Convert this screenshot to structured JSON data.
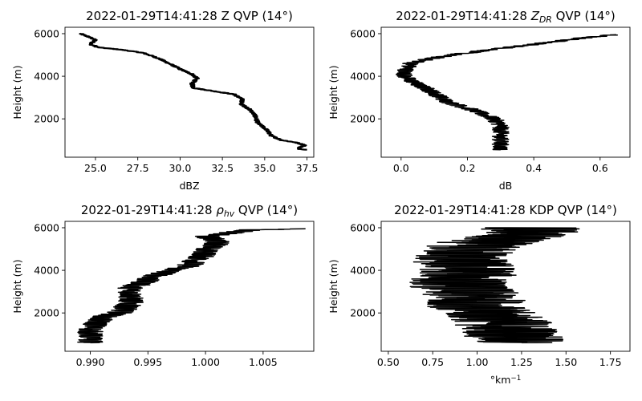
{
  "chart_data": [
    {
      "type": "line",
      "title": "2022-01-29T14:41:28 Z QVP (14°)",
      "title_parts": [
        {
          "t": "2022-01-29T14:41:28 Z QVP (14°)",
          "style": "normal"
        }
      ],
      "xlabel": "dBZ",
      "xlabel_parts": [
        {
          "t": "dBZ",
          "style": "normal"
        }
      ],
      "ylabel": "Height (m)",
      "xlim": [
        23.2,
        37.9
      ],
      "ylim": [
        200,
        6300
      ],
      "xticks": [
        25.0,
        27.5,
        30.0,
        32.5,
        35.0,
        37.5
      ],
      "xtick_labels": [
        "25.0",
        "27.5",
        "30.0",
        "32.5",
        "35.0",
        "37.5"
      ],
      "yticks": [
        2000,
        4000,
        6000
      ],
      "ytick_labels": [
        "2000",
        "4000",
        "6000"
      ],
      "color": "#000000",
      "linewidth": 2.2,
      "jitter": 0.12,
      "points": [
        [
          24.1,
          6000
        ],
        [
          24.6,
          5850
        ],
        [
          25.0,
          5700
        ],
        [
          24.7,
          5500
        ],
        [
          25.2,
          5350
        ],
        [
          26.5,
          5250
        ],
        [
          27.8,
          5100
        ],
        [
          28.7,
          4850
        ],
        [
          29.6,
          4500
        ],
        [
          30.1,
          4300
        ],
        [
          30.7,
          4100
        ],
        [
          31.0,
          3900
        ],
        [
          30.7,
          3650
        ],
        [
          30.8,
          3450
        ],
        [
          32.0,
          3300
        ],
        [
          33.2,
          3150
        ],
        [
          33.7,
          2900
        ],
        [
          33.6,
          2700
        ],
        [
          34.1,
          2450
        ],
        [
          34.4,
          2200
        ],
        [
          34.6,
          1800
        ],
        [
          35.1,
          1500
        ],
        [
          35.4,
          1200
        ],
        [
          36.0,
          1000
        ],
        [
          36.8,
          900
        ],
        [
          37.4,
          760
        ],
        [
          36.9,
          600
        ],
        [
          37.5,
          550
        ]
      ]
    },
    {
      "type": "line",
      "title": "2022-01-29T14:41:28 Z_DR QVP (14°)",
      "title_parts": [
        {
          "t": "2022-01-29T14:41:28 ",
          "style": "normal"
        },
        {
          "t": "Z",
          "style": "italic"
        },
        {
          "t": "DR",
          "style": "sub"
        },
        {
          "t": " QVP (14°)",
          "style": "normal"
        }
      ],
      "xlabel": "dB",
      "xlabel_parts": [
        {
          "t": "dB",
          "style": "normal"
        }
      ],
      "ylabel": "Height (m)",
      "xlim": [
        -0.06,
        0.69
      ],
      "ylim": [
        200,
        6300
      ],
      "xticks": [
        0.0,
        0.2,
        0.4,
        0.6
      ],
      "xtick_labels": [
        "0.0",
        "0.2",
        "0.4",
        "0.6"
      ],
      "yticks": [
        2000,
        4000,
        6000
      ],
      "ytick_labels": [
        "2000",
        "4000",
        "6000"
      ],
      "color": "#000000",
      "linewidth": 1.5,
      "jitter": 0.025,
      "points": [
        [
          0.65,
          5950
        ],
        [
          0.55,
          5800
        ],
        [
          0.45,
          5600
        ],
        [
          0.35,
          5400
        ],
        [
          0.25,
          5200
        ],
        [
          0.15,
          5000
        ],
        [
          0.08,
          4800
        ],
        [
          0.03,
          4600
        ],
        [
          0.02,
          4400
        ],
        [
          0.01,
          4200
        ],
        [
          0.01,
          4000
        ],
        [
          0.03,
          3800
        ],
        [
          0.05,
          3600
        ],
        [
          0.08,
          3400
        ],
        [
          0.1,
          3200
        ],
        [
          0.12,
          3000
        ],
        [
          0.14,
          2800
        ],
        [
          0.18,
          2600
        ],
        [
          0.22,
          2400
        ],
        [
          0.25,
          2200
        ],
        [
          0.28,
          2000
        ],
        [
          0.3,
          1700
        ],
        [
          0.3,
          1400
        ],
        [
          0.3,
          1100
        ],
        [
          0.3,
          800
        ],
        [
          0.3,
          550
        ]
      ]
    },
    {
      "type": "line",
      "title": "2022-01-29T14:41:28 ρ_hv QVP (14°)",
      "title_parts": [
        {
          "t": "2022-01-29T14:41:28 ",
          "style": "normal"
        },
        {
          "t": "ρ",
          "style": "italic"
        },
        {
          "t": "hv",
          "style": "sub"
        },
        {
          "t": " QVP (14°)",
          "style": "normal"
        }
      ],
      "xlabel": "",
      "xlabel_parts": [],
      "ylabel": "Height (m)",
      "xlim": [
        0.9878,
        1.0094
      ],
      "ylim": [
        200,
        6300
      ],
      "xticks": [
        0.99,
        0.995,
        1.0,
        1.005
      ],
      "xtick_labels": [
        "0.990",
        "0.995",
        "1.000",
        "1.005"
      ],
      "yticks": [
        2000,
        4000,
        6000
      ],
      "ytick_labels": [
        "2000",
        "4000",
        "6000"
      ],
      "color": "#000000",
      "linewidth": 1.5,
      "jitter": 0.0011,
      "points": [
        [
          1.0085,
          5950
        ],
        [
          1.004,
          5900
        ],
        [
          1.002,
          5750
        ],
        [
          1.0,
          5600
        ],
        [
          1.001,
          5400
        ],
        [
          1.001,
          5200
        ],
        [
          1.0,
          5000
        ],
        [
          1.0,
          4800
        ],
        [
          0.9995,
          4600
        ],
        [
          0.999,
          4400
        ],
        [
          0.9985,
          4200
        ],
        [
          0.997,
          4000
        ],
        [
          0.996,
          3800
        ],
        [
          0.995,
          3600
        ],
        [
          0.9945,
          3400
        ],
        [
          0.9935,
          3200
        ],
        [
          0.9935,
          3000
        ],
        [
          0.9935,
          2800
        ],
        [
          0.9935,
          2500
        ],
        [
          0.993,
          2200
        ],
        [
          0.9925,
          2000
        ],
        [
          0.991,
          1800
        ],
        [
          0.9905,
          1500
        ],
        [
          0.99,
          1200
        ],
        [
          0.99,
          900
        ],
        [
          0.99,
          600
        ]
      ]
    },
    {
      "type": "line",
      "title": "2022-01-29T14:41:28 KDP QVP (14°)",
      "title_parts": [
        {
          "t": "2022-01-29T14:41:28 KDP QVP (14°)",
          "style": "normal"
        }
      ],
      "xlabel": "°km^-1",
      "xlabel_parts": [
        {
          "t": "°km",
          "style": "normal"
        },
        {
          "t": "−1",
          "style": "sup"
        }
      ],
      "ylabel": "Height (m)",
      "xlim": [
        0.46,
        1.86
      ],
      "ylim": [
        200,
        6300
      ],
      "xticks": [
        0.5,
        0.75,
        1.0,
        1.25,
        1.5,
        1.75
      ],
      "xtick_labels": [
        "0.50",
        "0.75",
        "1.00",
        "1.25",
        "1.50",
        "1.75"
      ],
      "yticks": [
        2000,
        4000,
        6000
      ],
      "ytick_labels": [
        "2000",
        "4000",
        "6000"
      ],
      "color": "#000000",
      "linewidth": 1.5,
      "jitter": 0.28,
      "points": [
        [
          1.3,
          6000
        ],
        [
          1.3,
          5800
        ],
        [
          1.2,
          5600
        ],
        [
          1.1,
          5400
        ],
        [
          1.0,
          5200
        ],
        [
          0.95,
          5000
        ],
        [
          0.95,
          4800
        ],
        [
          0.9,
          4600
        ],
        [
          0.9,
          4400
        ],
        [
          0.95,
          4200
        ],
        [
          0.95,
          4000
        ],
        [
          0.95,
          3800
        ],
        [
          0.9,
          3600
        ],
        [
          0.9,
          3400
        ],
        [
          0.9,
          3200
        ],
        [
          0.95,
          3000
        ],
        [
          0.95,
          2800
        ],
        [
          1.0,
          2600
        ],
        [
          1.0,
          2400
        ],
        [
          1.0,
          2200
        ],
        [
          1.05,
          2000
        ],
        [
          1.1,
          1800
        ],
        [
          1.15,
          1600
        ],
        [
          1.15,
          1400
        ],
        [
          1.2,
          1200
        ],
        [
          1.2,
          1000
        ],
        [
          1.2,
          800
        ],
        [
          1.25,
          600
        ]
      ]
    }
  ]
}
